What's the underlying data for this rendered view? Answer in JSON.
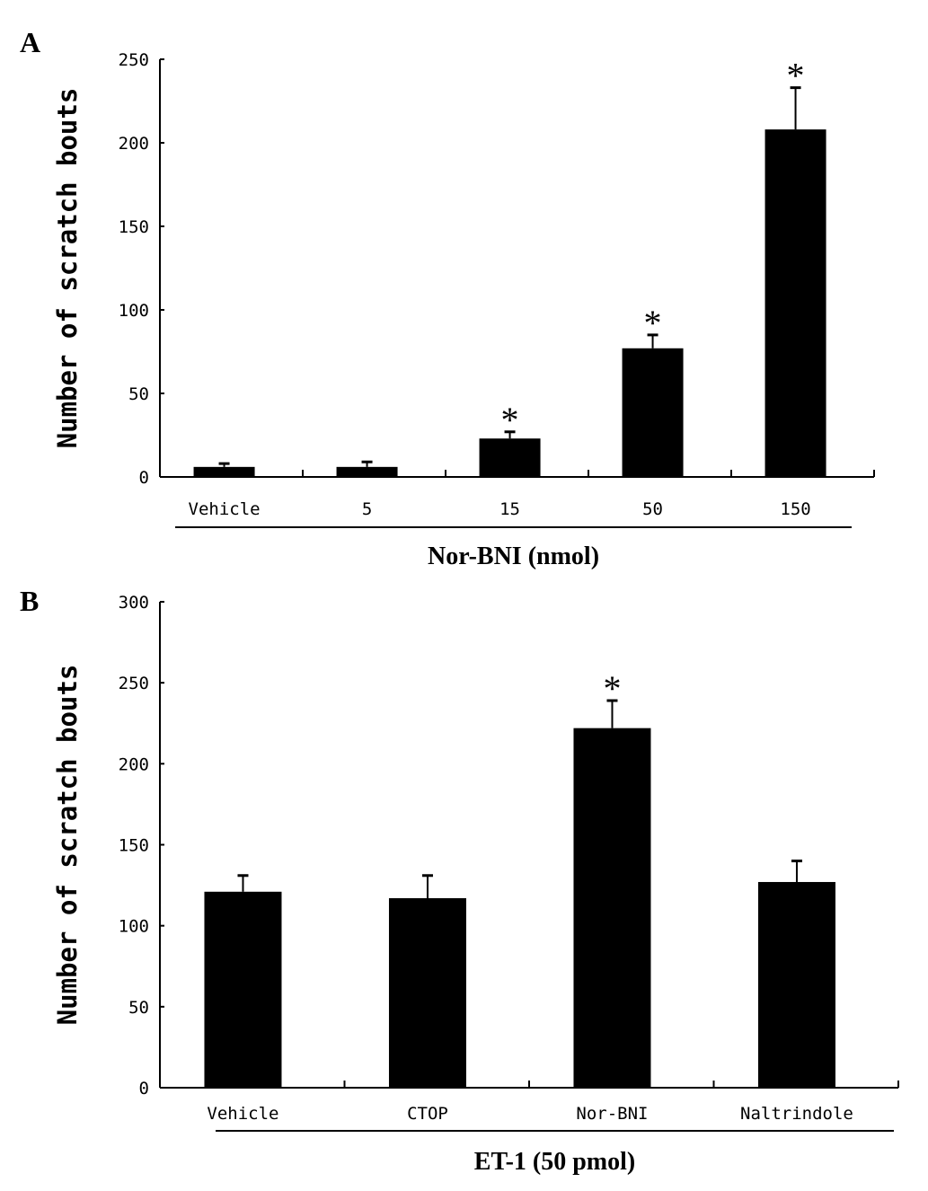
{
  "chart_data": [
    {
      "type": "bar",
      "panel_label": "A",
      "title": "",
      "xlabel": "Nor-BNI (nmol)",
      "ylabel": "Number of scratch bouts",
      "ylim": [
        0,
        250
      ],
      "yticks": [
        0,
        50,
        100,
        150,
        200,
        250
      ],
      "categories": [
        "Vehicle",
        "5",
        "15",
        "50",
        "150"
      ],
      "values": [
        6,
        6,
        23,
        77,
        208
      ],
      "error_upper": [
        8,
        9,
        27,
        85,
        233
      ],
      "significance": [
        "",
        "",
        "*",
        "*",
        "*"
      ],
      "bar_color": "#000000",
      "grid": false
    },
    {
      "type": "bar",
      "panel_label": "B",
      "title": "",
      "xlabel": "ET-1 (50 pmol)",
      "ylabel": "Number of scratch bouts",
      "ylim": [
        0,
        300
      ],
      "yticks": [
        0,
        50,
        100,
        150,
        200,
        250,
        300
      ],
      "categories": [
        "Vehicle",
        "CTOP",
        "Nor-BNI",
        "Naltrindole"
      ],
      "values": [
        121,
        117,
        222,
        127
      ],
      "error_upper": [
        131,
        131,
        239,
        140
      ],
      "significance": [
        "",
        "",
        "*",
        ""
      ],
      "bar_color": "#000000",
      "grid": false
    }
  ]
}
